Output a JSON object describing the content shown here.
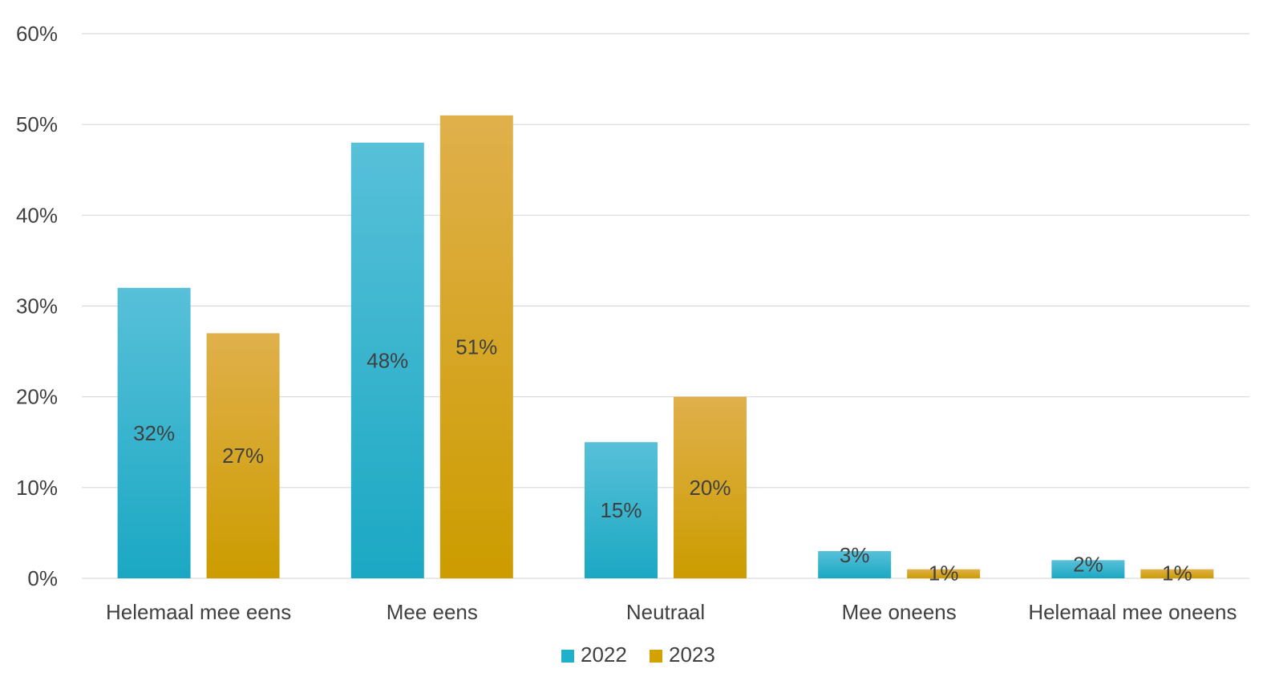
{
  "chart_data": {
    "type": "bar",
    "categories": [
      "Helemaal mee eens",
      "Mee eens",
      "Neutraal",
      "Mee oneens",
      "Helemaal mee oneens"
    ],
    "series": [
      {
        "name": "2022",
        "values": [
          32,
          48,
          15,
          3,
          2
        ],
        "labels": [
          "32%",
          "48%",
          "15%",
          "3%",
          "2%"
        ],
        "color": "#1fb0cc"
      },
      {
        "name": "2023",
        "values": [
          27,
          51,
          20,
          1,
          1
        ],
        "labels": [
          "27%",
          "51%",
          "20%",
          "1%",
          "1%"
        ],
        "color": "#d4a200"
      }
    ],
    "y_ticks": [
      "0%",
      "10%",
      "20%",
      "30%",
      "40%",
      "50%",
      "60%"
    ],
    "ylim": [
      0,
      60
    ],
    "y_tick_step": 10,
    "grid": true,
    "legend_position": "bottom-center"
  }
}
